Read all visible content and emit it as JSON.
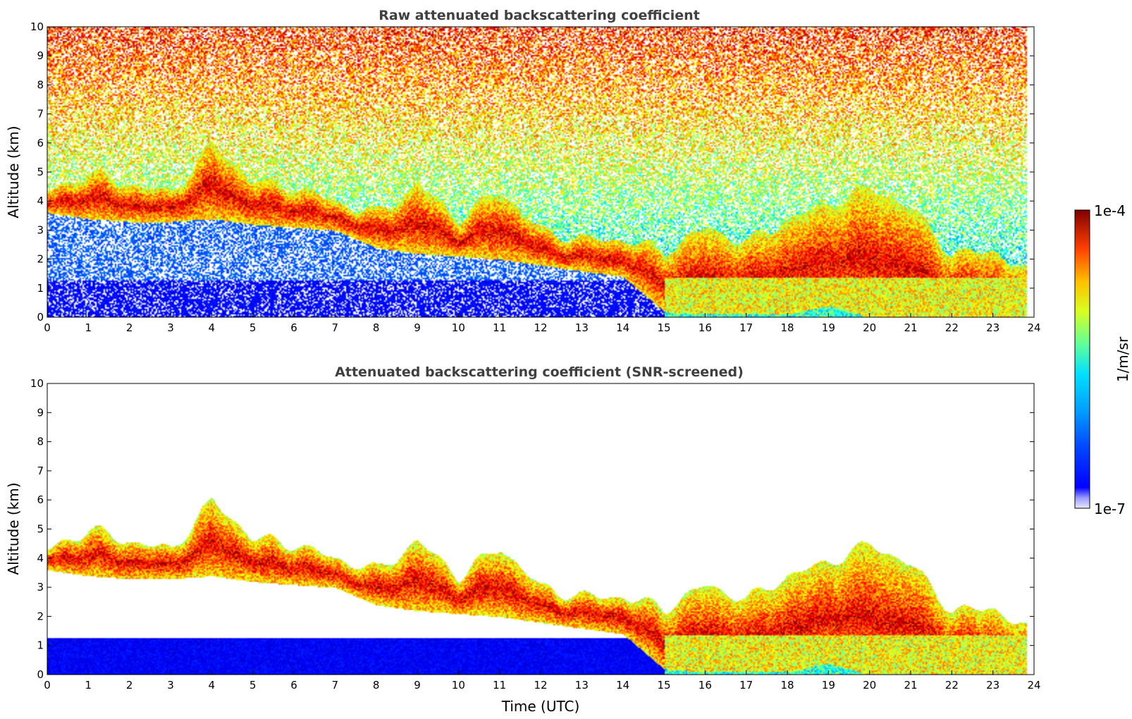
{
  "chart_data": [
    {
      "type": "heatmap",
      "title": "Raw attenuated backscattering coefficient",
      "xlabel": "",
      "ylabel": "Altitude (km)",
      "xlim": [
        0,
        24
      ],
      "ylim": [
        0,
        10
      ],
      "x_ticks": [
        0,
        1,
        2,
        3,
        4,
        5,
        6,
        7,
        8,
        9,
        10,
        11,
        12,
        13,
        14,
        15,
        16,
        17,
        18,
        19,
        20,
        21,
        22,
        23,
        24
      ],
      "y_ticks": [
        0,
        1,
        2,
        3,
        4,
        5,
        6,
        7,
        8,
        9,
        10
      ],
      "screened": false,
      "layer_top_km": [
        [
          0,
          4.3
        ],
        [
          1,
          5.0
        ],
        [
          2,
          4.6
        ],
        [
          3,
          4.3
        ],
        [
          4,
          6.0
        ],
        [
          5,
          4.7
        ],
        [
          6,
          4.5
        ],
        [
          7,
          4.0
        ],
        [
          8,
          3.6
        ],
        [
          9,
          4.6
        ],
        [
          10,
          3.4
        ],
        [
          11,
          4.4
        ],
        [
          12,
          3.0
        ],
        [
          13,
          2.7
        ],
        [
          14,
          2.7
        ],
        [
          15,
          2.3
        ],
        [
          16,
          3.1
        ],
        [
          17,
          2.6
        ],
        [
          18,
          3.4
        ],
        [
          19,
          3.9
        ],
        [
          20,
          4.5
        ],
        [
          21,
          3.8
        ],
        [
          22,
          2.2
        ],
        [
          23,
          2.3
        ],
        [
          23.8,
          1.6
        ]
      ],
      "layer_base_km": [
        [
          0,
          3.6
        ],
        [
          1,
          3.4
        ],
        [
          2,
          3.3
        ],
        [
          3,
          3.3
        ],
        [
          4,
          3.4
        ],
        [
          5,
          3.2
        ],
        [
          6,
          3.1
        ],
        [
          7,
          3.0
        ],
        [
          8,
          2.4
        ],
        [
          9,
          2.2
        ],
        [
          10,
          2.1
        ],
        [
          11,
          2.0
        ],
        [
          12,
          1.8
        ],
        [
          13,
          1.6
        ],
        [
          14,
          1.4
        ],
        [
          15,
          0.2
        ],
        [
          16,
          0.1
        ],
        [
          17,
          0.1
        ],
        [
          18,
          0.1
        ],
        [
          19,
          0.4
        ],
        [
          20,
          0.0
        ],
        [
          21,
          0.0
        ],
        [
          22,
          0.0
        ],
        [
          23,
          0.0
        ],
        [
          23.8,
          0.0
        ]
      ]
    },
    {
      "type": "heatmap",
      "title": "Attenuated backscattering coefficient (SNR-screened)",
      "xlabel": "Time (UTC)",
      "ylabel": "Altitude (km)",
      "xlim": [
        0,
        24
      ],
      "ylim": [
        0,
        10
      ],
      "x_ticks": [
        0,
        1,
        2,
        3,
        4,
        5,
        6,
        7,
        8,
        9,
        10,
        11,
        12,
        13,
        14,
        15,
        16,
        17,
        18,
        19,
        20,
        21,
        22,
        23,
        24
      ],
      "y_ticks": [
        0,
        1,
        2,
        3,
        4,
        5,
        6,
        7,
        8,
        9,
        10
      ],
      "screened": true
    }
  ],
  "colorbar": {
    "max_label": "1e-4",
    "min_label": "1e-7",
    "label": "1/m/sr",
    "scale": "log",
    "colormap": "jet"
  }
}
